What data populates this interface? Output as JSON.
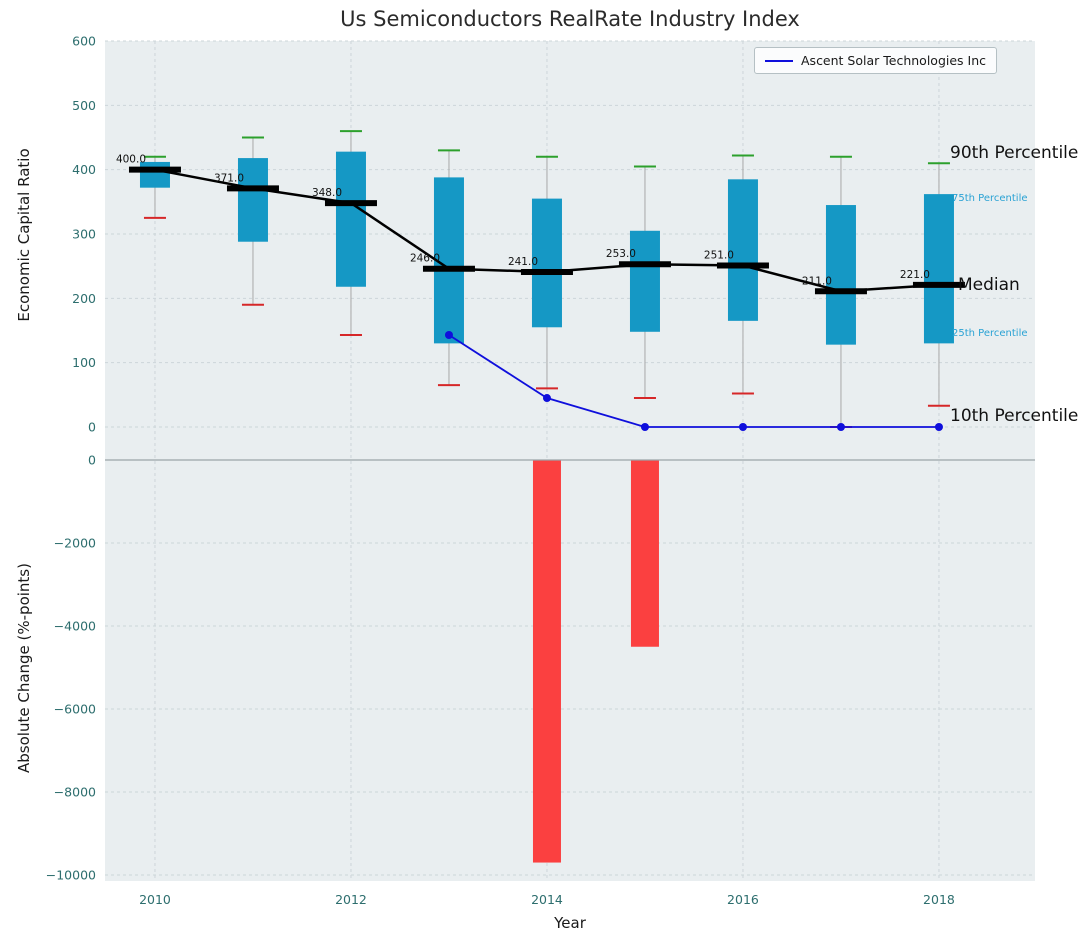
{
  "colors": {
    "plot_bg": "#e9eef0",
    "grid": "#ccd5d9",
    "box": "#1598c5",
    "whisker": "#a8a8a8",
    "p90": "#2ca02c",
    "p10": "#d62728",
    "median": "#000000",
    "company": "#0f0fdc",
    "bar": "#fb4040",
    "tick": "#2d6e6e",
    "annotation_small": "#2aa2d4",
    "zero_line": "#9aa4a8"
  },
  "chart_data": {
    "type": "boxplot+line+bar",
    "title": "Us Semiconductors RealRate Industry Index",
    "xlabel": "Year",
    "legend": {
      "position": "upper right",
      "entries": [
        "Ascent Solar Technologies Inc"
      ]
    },
    "annotations": {
      "p90": "90th Percentile",
      "p75": "75th Percentile",
      "median": "Median",
      "p25": "25th Percentile",
      "p10": "10th Percentile"
    },
    "years": [
      2010,
      2011,
      2012,
      2013,
      2014,
      2015,
      2016,
      2017,
      2018
    ],
    "xticks": [
      2010,
      2012,
      2014,
      2016,
      2018
    ],
    "xlim": [
      2009.49,
      2018.98
    ],
    "top_panel": {
      "ylabel": "Economic Capital Ratio",
      "ylim": [
        0,
        600
      ],
      "yticks": [
        0,
        100,
        200,
        300,
        400,
        500,
        600
      ],
      "p90": [
        420,
        450,
        460,
        430,
        420,
        405,
        422,
        420,
        410
      ],
      "p75": [
        412,
        418,
        428,
        388,
        355,
        305,
        385,
        345,
        362
      ],
      "median": [
        400,
        371,
        348,
        246,
        241,
        253,
        251,
        211,
        221
      ],
      "p25": [
        372,
        288,
        218,
        130,
        155,
        148,
        165,
        128,
        130
      ],
      "p10": [
        325,
        190,
        143,
        65,
        60,
        45,
        52,
        0,
        33
      ],
      "median_labels": [
        "400.0",
        "371.0",
        "348.0",
        "246.0",
        "241.0",
        "253.0",
        "251.0",
        "211.0",
        "221.0"
      ],
      "company_line": {
        "name": "Ascent Solar Technologies Inc",
        "years": [
          2013,
          2014,
          2015,
          2016,
          2017,
          2018
        ],
        "values": [
          143,
          45,
          0,
          0,
          0,
          0
        ]
      }
    },
    "bottom_panel": {
      "ylabel": "Absolute Change (%-points)",
      "ylim": [
        -10000,
        0
      ],
      "yticks": [
        0,
        -2000,
        -4000,
        -6000,
        -8000,
        -10000
      ],
      "bars": [
        {
          "year": 2014,
          "value": -9700
        },
        {
          "year": 2015,
          "value": -4500
        }
      ]
    }
  }
}
